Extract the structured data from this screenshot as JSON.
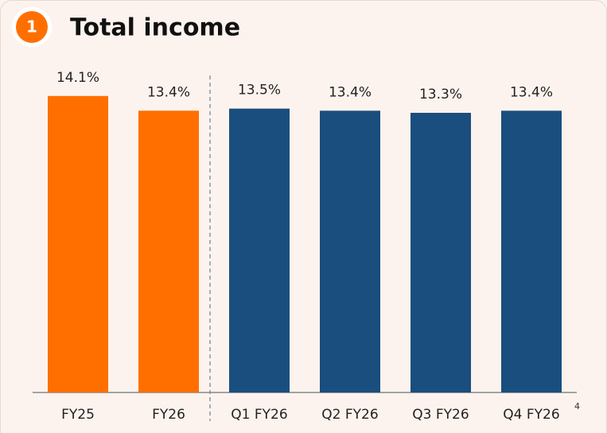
{
  "chart_data": {
    "type": "bar",
    "title": "Total income",
    "badge": "1",
    "categories": [
      "FY25",
      "FY26",
      "Q1 FY26",
      "Q2 FY26",
      "Q3 FY26",
      "Q4 FY26"
    ],
    "values": [
      14.1,
      13.4,
      13.5,
      13.4,
      13.3,
      13.4
    ],
    "value_labels": [
      "14.1%",
      "13.4%",
      "13.5%",
      "13.4%",
      "13.3%",
      "13.4%"
    ],
    "colors": [
      "#ff6f00",
      "#ff6f00",
      "#1a4e7e",
      "#1a4e7e",
      "#1a4e7e",
      "#1a4e7e"
    ],
    "ylim": [
      0,
      15
    ],
    "footnote": "4"
  }
}
